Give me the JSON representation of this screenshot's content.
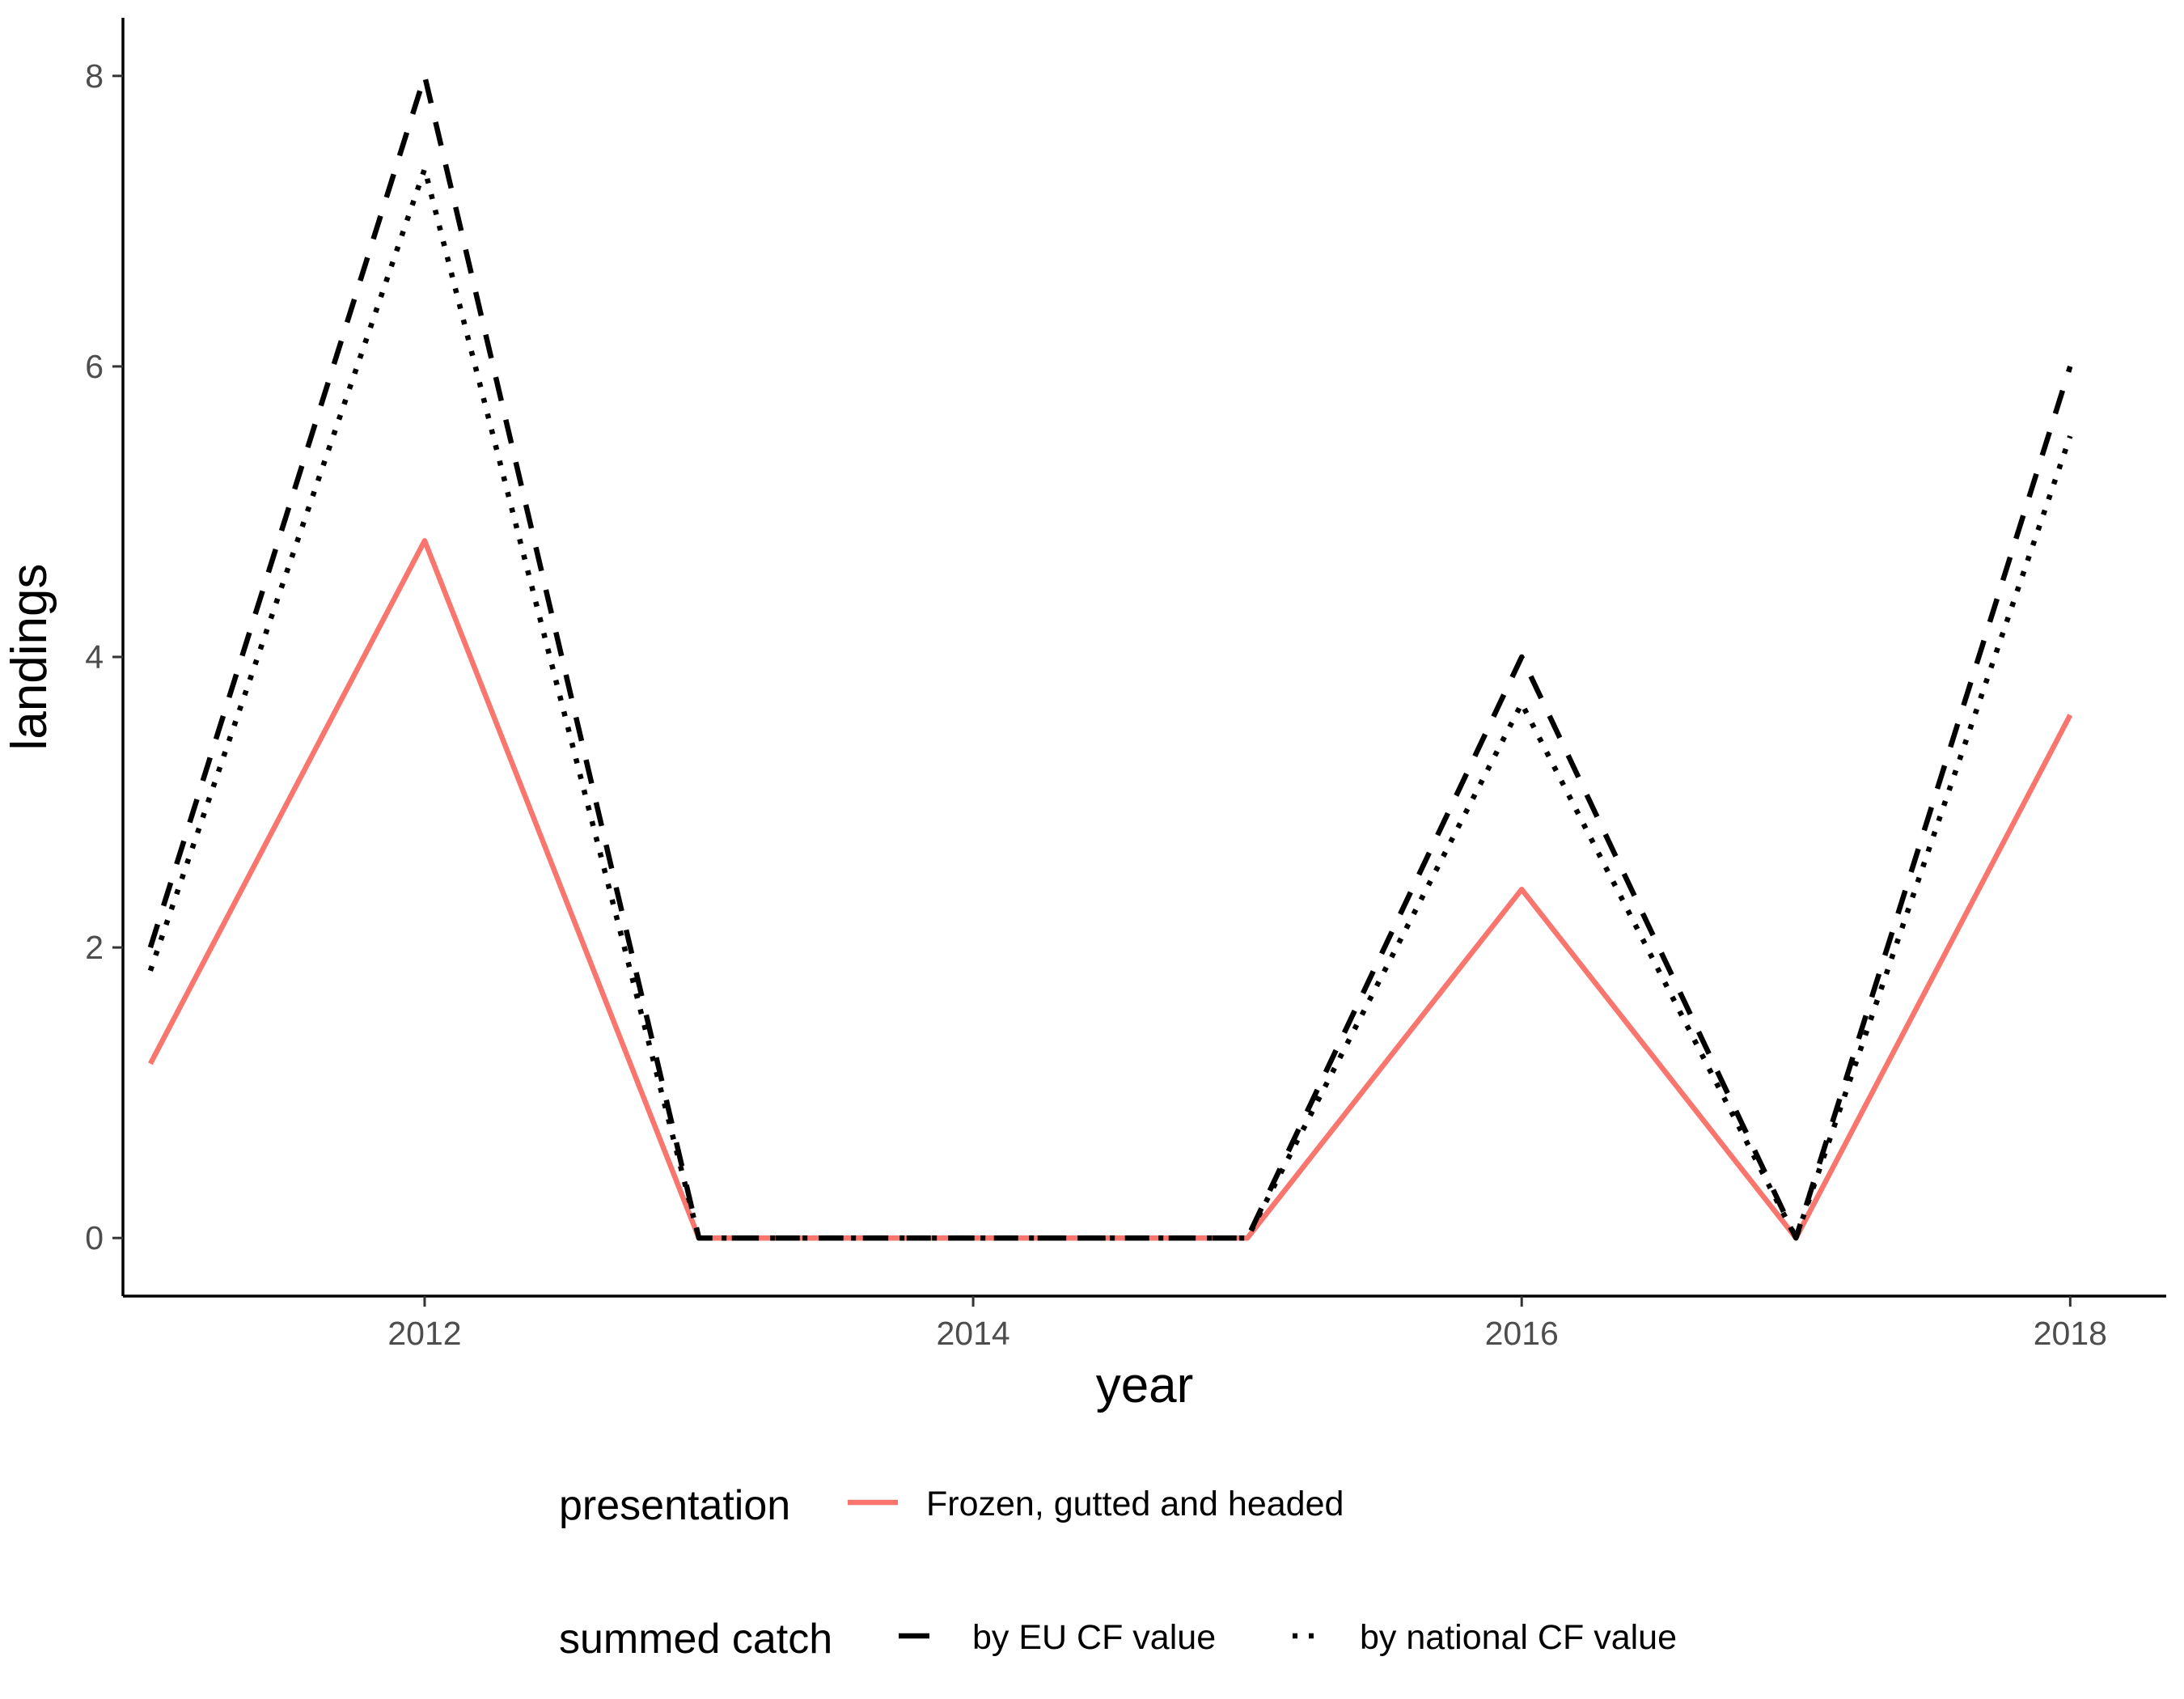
{
  "chart_data": {
    "type": "line",
    "title": "",
    "xlabel": "year",
    "ylabel": "landings",
    "xlim": [
      2010.9,
      2018.35
    ],
    "ylim": [
      -0.4,
      8.4
    ],
    "x_ticks": [
      2012,
      2014,
      2016,
      2018
    ],
    "y_ticks": [
      0,
      2,
      4,
      6,
      8
    ],
    "x_tick_labels": [
      "2012",
      "2014",
      "2016",
      "2018"
    ],
    "y_tick_labels": [
      "0",
      "2",
      "4",
      "6",
      "8"
    ],
    "grid": false,
    "legend_position": "bottom",
    "x": [
      2011,
      2012,
      2013,
      2014,
      2015,
      2016,
      2017,
      2018
    ],
    "series": [
      {
        "name": "Frozen, gutted and headed",
        "legend_group": "presentation",
        "color": "#F8766D",
        "linetype": "solid",
        "values": [
          1.2,
          4.8,
          0,
          0,
          0,
          2.4,
          0,
          3.6
        ]
      },
      {
        "name": "by EU CF value",
        "legend_group": "summed catch",
        "color": "#000000",
        "linetype": "dashed",
        "values": [
          2.0,
          8.0,
          0,
          0,
          0,
          4.0,
          0,
          6.0
        ]
      },
      {
        "name": "by national CF value",
        "legend_group": "summed catch",
        "color": "#000000",
        "linetype": "dotted",
        "values": [
          1.84,
          7.36,
          0,
          0,
          0,
          3.68,
          0,
          5.52
        ]
      }
    ],
    "legend": {
      "presentation_title": "presentation",
      "presentation_items": [
        "Frozen, gutted and headed"
      ],
      "summed_title": "summed catch",
      "summed_items": [
        "by EU CF value",
        "by national CF value"
      ]
    }
  }
}
